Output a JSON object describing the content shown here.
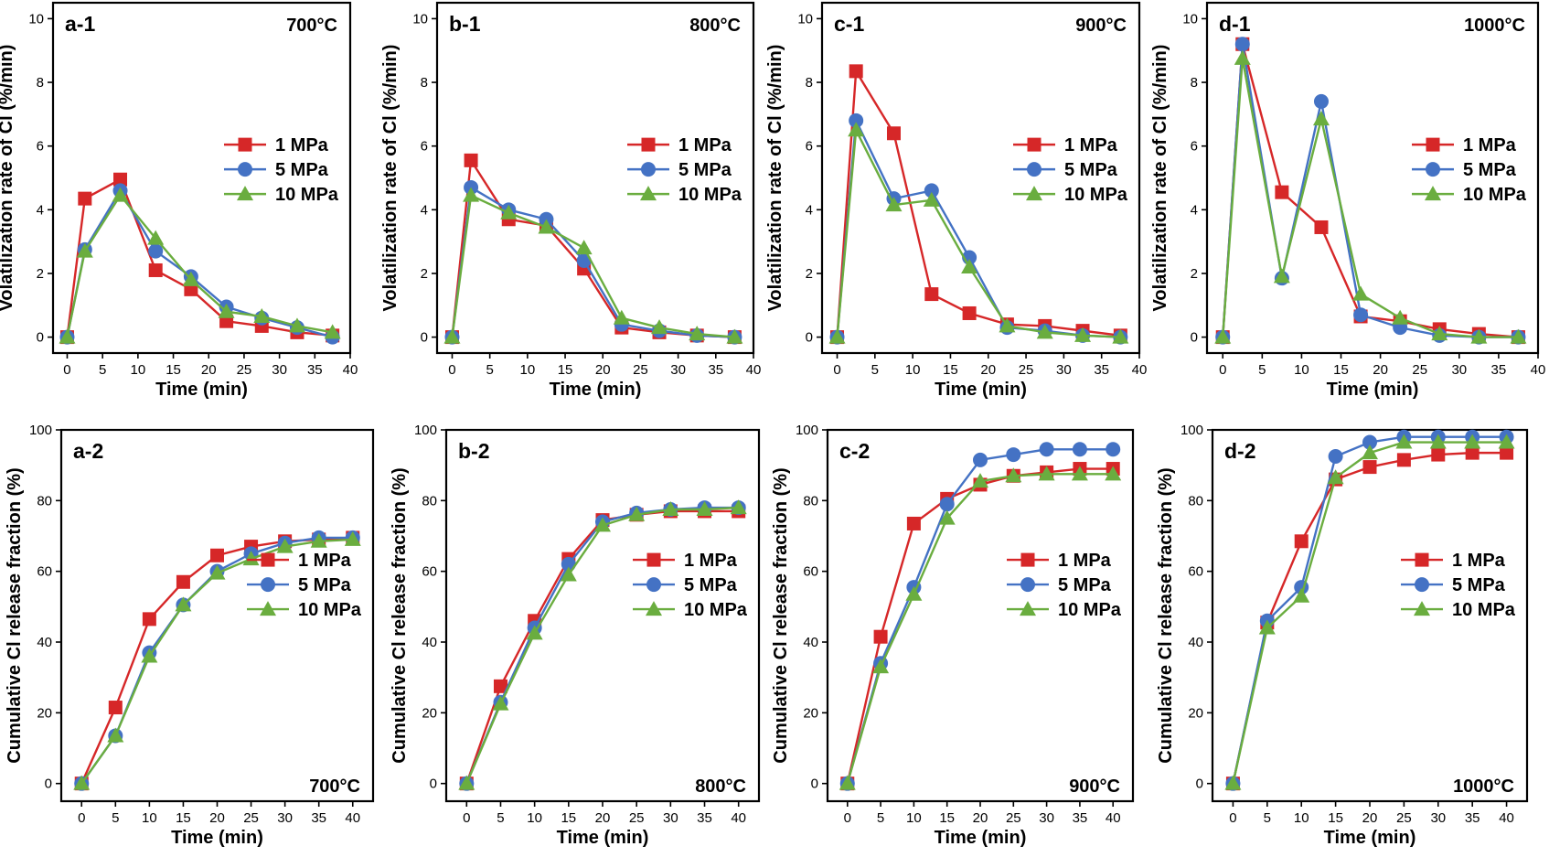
{
  "colors": {
    "1 MPa": "#d62728",
    "5 MPa": "#4472c4",
    "10 MPa": "#6aad3f"
  },
  "markers": {
    "1 MPa": "square",
    "5 MPa": "circle",
    "10 MPa": "triangle"
  },
  "chart_data": [
    {
      "type": "line",
      "panel_label": "a-1",
      "temperature_label": "700°C",
      "temperature_position": "top-right",
      "xlabel": "Time (min)",
      "ylabel": "Volatilization rate of Cl (%/min)",
      "xlim": [
        -2,
        40
      ],
      "ylim": [
        -0.5,
        10.5
      ],
      "x_ticks": [
        0,
        5,
        10,
        15,
        20,
        25,
        30,
        35,
        40
      ],
      "y_ticks": [
        0,
        2,
        4,
        6,
        8,
        10
      ],
      "x": [
        0,
        2.5,
        7.5,
        12.5,
        17.5,
        22.5,
        27.5,
        32.5,
        37.5
      ],
      "legend_position": "center-right",
      "series": [
        {
          "name": "1 MPa",
          "values": [
            0,
            4.35,
            4.95,
            2.1,
            1.5,
            0.5,
            0.35,
            0.15,
            0.05
          ]
        },
        {
          "name": "5 MPa",
          "values": [
            0,
            2.75,
            4.6,
            2.7,
            1.9,
            0.95,
            0.6,
            0.3,
            0.0
          ]
        },
        {
          "name": "10 MPa",
          "values": [
            0,
            2.7,
            4.45,
            3.1,
            1.8,
            0.8,
            0.65,
            0.35,
            0.15
          ]
        }
      ]
    },
    {
      "type": "line",
      "panel_label": "b-1",
      "temperature_label": "800°C",
      "temperature_position": "top-right",
      "xlabel": "Time (min)",
      "ylabel": "Volatilization rate of Cl (%/min)",
      "xlim": [
        -2,
        40
      ],
      "ylim": [
        -0.5,
        10.5
      ],
      "x_ticks": [
        0,
        5,
        10,
        15,
        20,
        25,
        30,
        35,
        40
      ],
      "y_ticks": [
        0,
        2,
        4,
        6,
        8,
        10
      ],
      "x": [
        0,
        2.5,
        7.5,
        12.5,
        17.5,
        22.5,
        27.5,
        32.5,
        37.5
      ],
      "legend_position": "center-right",
      "series": [
        {
          "name": "1 MPa",
          "values": [
            0,
            5.55,
            3.7,
            3.5,
            2.15,
            0.3,
            0.15,
            0.05,
            0.0
          ]
        },
        {
          "name": "5 MPa",
          "values": [
            0,
            4.7,
            4.0,
            3.7,
            2.4,
            0.4,
            0.2,
            0.05,
            0.0
          ]
        },
        {
          "name": "10 MPa",
          "values": [
            0,
            4.45,
            3.9,
            3.45,
            2.8,
            0.6,
            0.3,
            0.1,
            0.0
          ]
        }
      ]
    },
    {
      "type": "line",
      "panel_label": "c-1",
      "temperature_label": "900°C",
      "temperature_position": "top-right",
      "xlabel": "Time (min)",
      "ylabel": "Volatilization rate of Cl (%/min)",
      "xlim": [
        -2,
        40
      ],
      "ylim": [
        -0.5,
        10.5
      ],
      "x_ticks": [
        0,
        5,
        10,
        15,
        20,
        25,
        30,
        35,
        40
      ],
      "y_ticks": [
        0,
        2,
        4,
        6,
        8,
        10
      ],
      "x": [
        0,
        2.5,
        7.5,
        12.5,
        17.5,
        22.5,
        27.5,
        32.5,
        37.5
      ],
      "legend_position": "center-right",
      "series": [
        {
          "name": "1 MPa",
          "values": [
            0,
            8.35,
            6.4,
            1.35,
            0.75,
            0.4,
            0.35,
            0.2,
            0.05
          ]
        },
        {
          "name": "5 MPa",
          "values": [
            0,
            6.8,
            4.35,
            4.6,
            2.5,
            0.3,
            0.2,
            0.05,
            0.0
          ]
        },
        {
          "name": "10 MPa",
          "values": [
            0,
            6.5,
            4.15,
            4.3,
            2.2,
            0.35,
            0.15,
            0.05,
            0.0
          ]
        }
      ]
    },
    {
      "type": "line",
      "panel_label": "d-1",
      "temperature_label": "1000°C",
      "temperature_position": "top-right",
      "xlabel": "Time (min)",
      "ylabel": "Volatilization rate of Cl (%/min)",
      "xlim": [
        -2,
        40
      ],
      "ylim": [
        -0.5,
        10.5
      ],
      "x_ticks": [
        0,
        5,
        10,
        15,
        20,
        25,
        30,
        35,
        40
      ],
      "y_ticks": [
        0,
        2,
        4,
        6,
        8,
        10
      ],
      "x": [
        0,
        2.5,
        7.5,
        12.5,
        17.5,
        22.5,
        27.5,
        32.5,
        37.5
      ],
      "legend_position": "center-right",
      "series": [
        {
          "name": "1 MPa",
          "values": [
            0,
            9.2,
            4.55,
            3.45,
            0.65,
            0.5,
            0.25,
            0.1,
            0.0
          ]
        },
        {
          "name": "5 MPa",
          "values": [
            0,
            9.2,
            1.85,
            7.4,
            0.7,
            0.3,
            0.05,
            0.0,
            0.0
          ]
        },
        {
          "name": "10 MPa",
          "values": [
            0,
            8.75,
            1.9,
            6.85,
            1.35,
            0.6,
            0.1,
            0.0,
            0.0
          ]
        }
      ]
    },
    {
      "type": "line",
      "panel_label": "a-2",
      "temperature_label": "700°C",
      "temperature_position": "bottom-right",
      "xlabel": "Time (min)",
      "ylabel": "Cumulative Cl release fraction (%)",
      "xlim": [
        -3,
        43
      ],
      "ylim": [
        -5,
        100
      ],
      "x_ticks": [
        0,
        5,
        10,
        15,
        20,
        25,
        30,
        35,
        40
      ],
      "y_ticks": [
        0,
        20,
        40,
        60,
        80,
        100
      ],
      "x": [
        0,
        5,
        10,
        15,
        20,
        25,
        30,
        35,
        40
      ],
      "legend_position": "center-right",
      "series": [
        {
          "name": "1 MPa",
          "values": [
            0,
            21.5,
            46.5,
            57,
            64.5,
            67,
            68.5,
            69,
            69.5
          ]
        },
        {
          "name": "5 MPa",
          "values": [
            0,
            13.5,
            37,
            50.5,
            60,
            65,
            68,
            69.5,
            69.5
          ]
        },
        {
          "name": "10 MPa",
          "values": [
            0,
            13.5,
            36,
            50.5,
            59.5,
            63.5,
            67,
            68.5,
            69
          ]
        }
      ]
    },
    {
      "type": "line",
      "panel_label": "b-2",
      "temperature_label": "800°C",
      "temperature_position": "bottom-right",
      "xlabel": "Time (min)",
      "ylabel": "Cumulative Cl release fraction (%)",
      "xlim": [
        -3,
        43
      ],
      "ylim": [
        -5,
        100
      ],
      "x_ticks": [
        0,
        5,
        10,
        15,
        20,
        25,
        30,
        35,
        40
      ],
      "y_ticks": [
        0,
        20,
        40,
        60,
        80,
        100
      ],
      "x": [
        0,
        5,
        10,
        15,
        20,
        25,
        30,
        35,
        40
      ],
      "legend_position": "center-right",
      "series": [
        {
          "name": "1 MPa",
          "values": [
            0,
            27.5,
            46,
            63.5,
            74.5,
            76,
            77,
            77,
            77
          ]
        },
        {
          "name": "5 MPa",
          "values": [
            0,
            23,
            44,
            62,
            74,
            76.5,
            77.5,
            78,
            78
          ]
        },
        {
          "name": "10 MPa",
          "values": [
            0,
            22.5,
            42.5,
            59,
            73,
            76,
            77.5,
            77.5,
            78
          ]
        }
      ]
    },
    {
      "type": "line",
      "panel_label": "c-2",
      "temperature_label": "900°C",
      "temperature_position": "bottom-right",
      "xlabel": "Time (min)",
      "ylabel": "Cumulative Cl release fraction (%)",
      "xlim": [
        -3,
        43
      ],
      "ylim": [
        -5,
        100
      ],
      "x_ticks": [
        0,
        5,
        10,
        15,
        20,
        25,
        30,
        35,
        40
      ],
      "y_ticks": [
        0,
        20,
        40,
        60,
        80,
        100
      ],
      "x": [
        0,
        5,
        10,
        15,
        20,
        25,
        30,
        35,
        40
      ],
      "legend_position": "center-right",
      "series": [
        {
          "name": "1 MPa",
          "values": [
            0,
            41.5,
            73.5,
            80.5,
            84.5,
            87,
            88,
            89,
            89
          ]
        },
        {
          "name": "5 MPa",
          "values": [
            0,
            34,
            55.5,
            79,
            91.5,
            93,
            94.5,
            94.5,
            94.5
          ]
        },
        {
          "name": "10 MPa",
          "values": [
            0,
            33,
            53.5,
            75,
            85.5,
            87,
            87.5,
            87.5,
            87.5
          ]
        }
      ]
    },
    {
      "type": "line",
      "panel_label": "d-2",
      "temperature_label": "1000°C",
      "temperature_position": "bottom-right",
      "xlabel": "Time (min)",
      "ylabel": "Cumulative Cl release fraction (%)",
      "xlim": [
        -3,
        43
      ],
      "ylim": [
        -5,
        100
      ],
      "x_ticks": [
        0,
        5,
        10,
        15,
        20,
        25,
        30,
        35,
        40
      ],
      "y_ticks": [
        0,
        20,
        40,
        60,
        80,
        100
      ],
      "x": [
        0,
        5,
        10,
        15,
        20,
        25,
        30,
        35,
        40
      ],
      "legend_position": "center-right",
      "series": [
        {
          "name": "1 MPa",
          "values": [
            0,
            45.5,
            68.5,
            86,
            89.5,
            91.5,
            93,
            93.5,
            93.5
          ]
        },
        {
          "name": "5 MPa",
          "values": [
            0,
            46,
            55.5,
            92.5,
            96.5,
            98,
            98,
            98,
            98
          ]
        },
        {
          "name": "10 MPa",
          "values": [
            0,
            44,
            53,
            86.5,
            93.5,
            96.5,
            96.5,
            96.5,
            96.5
          ]
        }
      ]
    }
  ]
}
